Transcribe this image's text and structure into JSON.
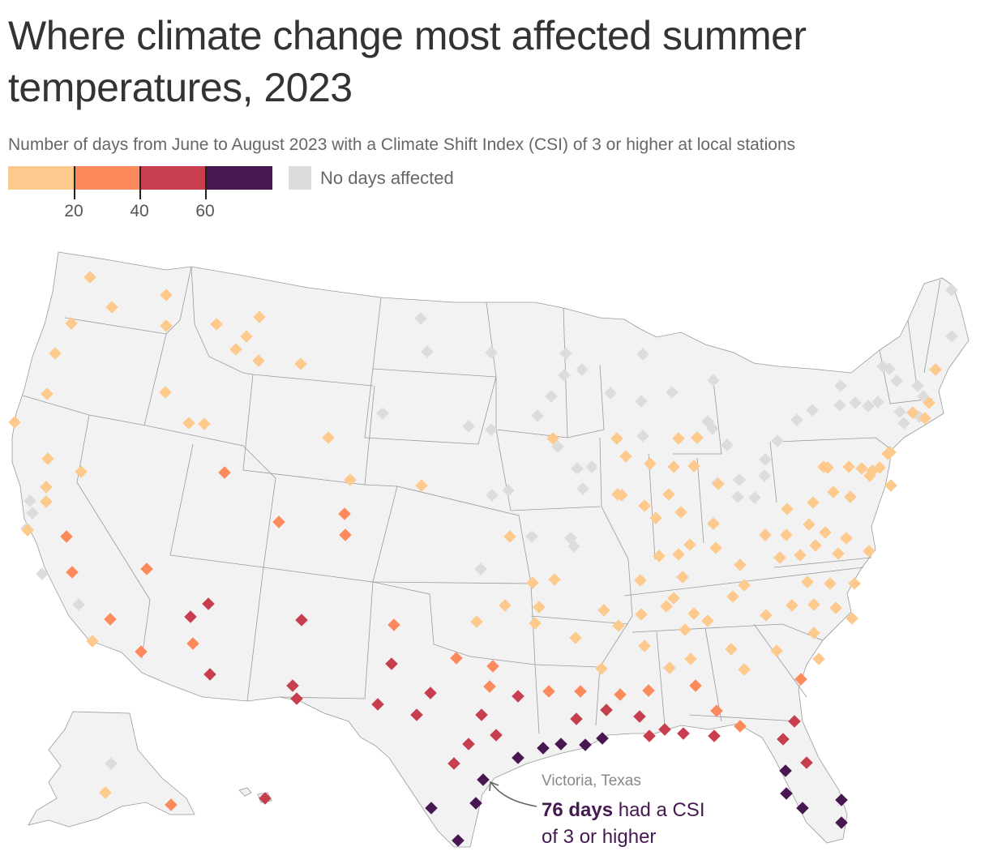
{
  "title": "Where climate change most affected summer temperatures, 2023",
  "subtitle": "Number of days from June to August 2023 with a Climate Shift Index (CSI) of 3 or higher at local stations",
  "legend": {
    "colors": [
      "#fdc98c",
      "#fc8a5c",
      "#c73e4e",
      "#481650"
    ],
    "breaks": [
      "20",
      "40",
      "60"
    ],
    "no_days_label": "No days affected",
    "no_days_color": "#dcdcdc"
  },
  "annotation": {
    "place": "Victoria, Texas",
    "bold": "76 days",
    "rest_line1": " had a CSI",
    "line2": "of 3 or higher"
  },
  "stations": {
    "classes": [
      "none",
      "lt20",
      "20to40",
      "40to60",
      "gt60"
    ],
    "none": [
      [
        37,
        618
      ],
      [
        40,
        633
      ],
      [
        33,
        652
      ],
      [
        52,
        708
      ],
      [
        97,
        746
      ],
      [
        137,
        942
      ],
      [
        519,
        393
      ],
      [
        527,
        434
      ],
      [
        606,
        435
      ],
      [
        698,
        436
      ],
      [
        793,
        437
      ],
      [
        880,
        469
      ],
      [
        578,
        526
      ],
      [
        606,
        530
      ],
      [
        472,
        510
      ],
      [
        663,
        513
      ],
      [
        680,
        489
      ],
      [
        696,
        463
      ],
      [
        718,
        456
      ],
      [
        753,
        485
      ],
      [
        791,
        495
      ],
      [
        793,
        538
      ],
      [
        829,
        484
      ],
      [
        860,
        540
      ],
      [
        873,
        520
      ],
      [
        879,
        529
      ],
      [
        897,
        549
      ],
      [
        688,
        551
      ],
      [
        712,
        578
      ],
      [
        730,
        576
      ],
      [
        719,
        603
      ],
      [
        607,
        611
      ],
      [
        627,
        605
      ],
      [
        656,
        662
      ],
      [
        704,
        664
      ],
      [
        708,
        674
      ],
      [
        593,
        702
      ],
      [
        885,
        596
      ],
      [
        912,
        592
      ],
      [
        931,
        614
      ],
      [
        943,
        587
      ],
      [
        944,
        567
      ],
      [
        910,
        613
      ],
      [
        959,
        544
      ],
      [
        983,
        518
      ],
      [
        1002,
        506
      ],
      [
        1037,
        476
      ],
      [
        1036,
        500
      ],
      [
        1055,
        497
      ],
      [
        1071,
        501
      ],
      [
        1083,
        496
      ],
      [
        1089,
        452
      ],
      [
        1106,
        470
      ],
      [
        1110,
        508
      ],
      [
        1115,
        522
      ],
      [
        1132,
        476
      ],
      [
        1139,
        489
      ],
      [
        1134,
        514
      ],
      [
        1174,
        415
      ],
      [
        1174,
        358
      ],
      [
        1097,
        455
      ]
    ],
    "lt20": [
      [
        111,
        342
      ],
      [
        138,
        379
      ],
      [
        88,
        399
      ],
      [
        205,
        364
      ],
      [
        205,
        402
      ],
      [
        68,
        436
      ],
      [
        58,
        486
      ],
      [
        18,
        521
      ],
      [
        59,
        566
      ],
      [
        57,
        601
      ],
      [
        57,
        619
      ],
      [
        34,
        654
      ],
      [
        100,
        582
      ],
      [
        114,
        791
      ],
      [
        204,
        484
      ],
      [
        233,
        522
      ],
      [
        252,
        523
      ],
      [
        267,
        400
      ],
      [
        304,
        415
      ],
      [
        291,
        431
      ],
      [
        320,
        391
      ],
      [
        319,
        445
      ],
      [
        371,
        449
      ],
      [
        405,
        540
      ],
      [
        432,
        592
      ],
      [
        520,
        599
      ],
      [
        682,
        541
      ],
      [
        629,
        662
      ],
      [
        657,
        719
      ],
      [
        684,
        715
      ],
      [
        623,
        747
      ],
      [
        588,
        767
      ],
      [
        660,
        769
      ],
      [
        665,
        749
      ],
      [
        710,
        787
      ],
      [
        742,
        825
      ],
      [
        745,
        753
      ],
      [
        763,
        772
      ],
      [
        795,
        797
      ],
      [
        761,
        541
      ],
      [
        772,
        563
      ],
      [
        802,
        572
      ],
      [
        831,
        576
      ],
      [
        860,
        540
      ],
      [
        837,
        541
      ],
      [
        856,
        575
      ],
      [
        762,
        610
      ],
      [
        767,
        611
      ],
      [
        795,
        624
      ],
      [
        825,
        610
      ],
      [
        840,
        632
      ],
      [
        809,
        639
      ],
      [
        886,
        597
      ],
      [
        880,
        646
      ],
      [
        851,
        672
      ],
      [
        837,
        684
      ],
      [
        813,
        686
      ],
      [
        790,
        716
      ],
      [
        791,
        758
      ],
      [
        822,
        748
      ],
      [
        831,
        738
      ],
      [
        842,
        712
      ],
      [
        856,
        757
      ],
      [
        845,
        777
      ],
      [
        826,
        824
      ],
      [
        852,
        813
      ],
      [
        873,
        766
      ],
      [
        883,
        676
      ],
      [
        913,
        697
      ],
      [
        904,
        736
      ],
      [
        902,
        801
      ],
      [
        918,
        826
      ],
      [
        945,
        759
      ],
      [
        944,
        660
      ],
      [
        971,
        628
      ],
      [
        970,
        660
      ],
      [
        962,
        688
      ],
      [
        987,
        685
      ],
      [
        998,
        647
      ],
      [
        1003,
        620
      ],
      [
        1018,
        657
      ],
      [
        1006,
        673
      ],
      [
        1028,
        607
      ],
      [
        1049,
        613
      ],
      [
        1044,
        664
      ],
      [
        1034,
        683
      ],
      [
        1072,
        680
      ],
      [
        996,
        718
      ],
      [
        1024,
        720
      ],
      [
        1054,
        720
      ],
      [
        1004,
        746
      ],
      [
        977,
        747
      ],
      [
        1031,
        750
      ],
      [
        1051,
        763
      ],
      [
        1010,
        813
      ],
      [
        1004,
        781
      ],
      [
        1016,
        576
      ],
      [
        1047,
        576
      ],
      [
        1063,
        578
      ],
      [
        1073,
        587
      ],
      [
        1076,
        581
      ],
      [
        1085,
        577
      ],
      [
        1099,
        599
      ],
      [
        1095,
        560
      ],
      [
        1098,
        558
      ],
      [
        1126,
        509
      ],
      [
        1146,
        497
      ],
      [
        1141,
        516
      ],
      [
        1154,
        456
      ],
      [
        1021,
        577
      ],
      [
        958,
        803
      ],
      [
        130,
        978
      ],
      [
        918,
        722
      ]
    ],
    "20to40": [
      [
        277,
        583
      ],
      [
        344,
        644
      ],
      [
        425,
        634
      ],
      [
        426,
        660
      ],
      [
        82,
        662
      ],
      [
        89,
        706
      ],
      [
        181,
        702
      ],
      [
        136,
        764
      ],
      [
        174,
        804
      ],
      [
        238,
        794
      ],
      [
        486,
        771
      ],
      [
        563,
        812
      ],
      [
        608,
        822
      ],
      [
        604,
        847
      ],
      [
        677,
        853
      ],
      [
        716,
        853
      ],
      [
        765,
        857
      ],
      [
        800,
        852
      ],
      [
        858,
        846
      ],
      [
        884,
        877
      ],
      [
        913,
        896
      ],
      [
        988,
        838
      ],
      [
        211,
        993
      ]
    ],
    "40to60": [
      [
        235,
        761
      ],
      [
        257,
        745
      ],
      [
        259,
        832
      ],
      [
        372,
        765
      ],
      [
        483,
        819
      ],
      [
        531,
        855
      ],
      [
        514,
        882
      ],
      [
        466,
        869
      ],
      [
        361,
        846
      ],
      [
        366,
        862
      ],
      [
        594,
        882
      ],
      [
        612,
        907
      ],
      [
        639,
        859
      ],
      [
        578,
        918
      ],
      [
        560,
        942
      ],
      [
        711,
        887
      ],
      [
        748,
        876
      ],
      [
        789,
        884
      ],
      [
        801,
        908
      ],
      [
        820,
        900
      ],
      [
        843,
        905
      ],
      [
        881,
        908
      ],
      [
        980,
        890
      ],
      [
        966,
        912
      ],
      [
        995,
        941
      ],
      [
        327,
        985
      ]
    ],
    "gt60": [
      [
        596,
        962
      ],
      [
        587,
        991
      ],
      [
        532,
        997
      ],
      [
        565,
        1037
      ],
      [
        639,
        935
      ],
      [
        670,
        923
      ],
      [
        692,
        918
      ],
      [
        722,
        919
      ],
      [
        743,
        911
      ],
      [
        969,
        951
      ],
      [
        970,
        979
      ],
      [
        990,
        997
      ],
      [
        1038,
        987
      ],
      [
        1038,
        1015
      ]
    ]
  }
}
